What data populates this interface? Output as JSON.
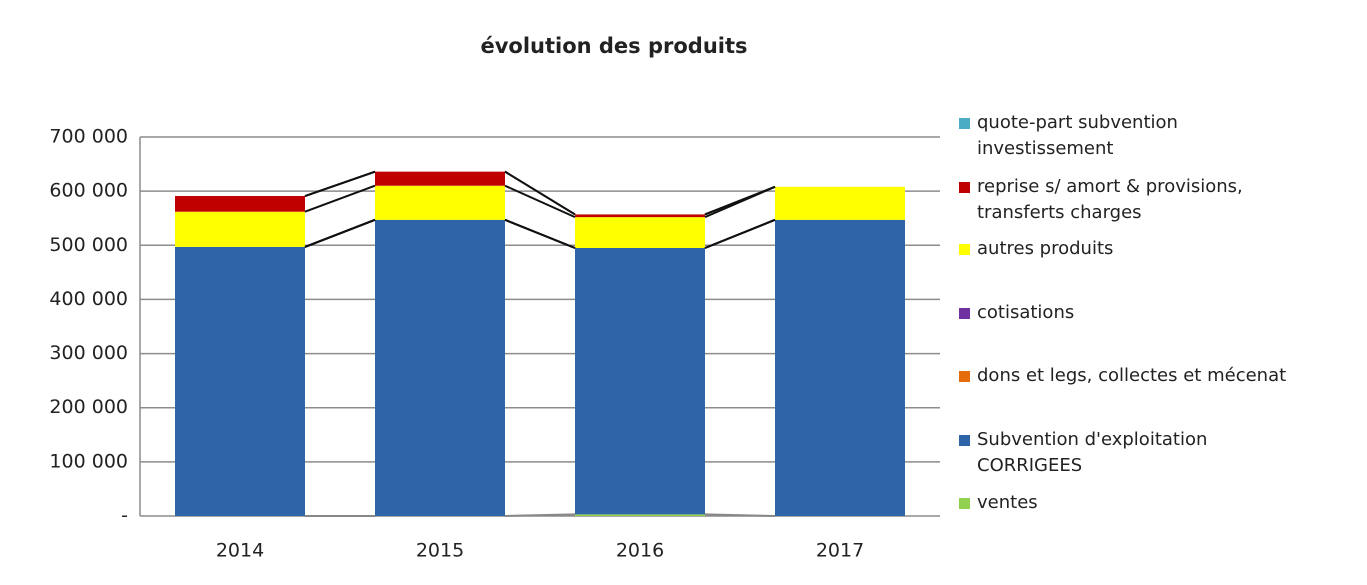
{
  "chart_data": {
    "type": "stacked_bar",
    "title": "évolution des produits",
    "categories": [
      "2014",
      "2015",
      "2016",
      "2017"
    ],
    "series": [
      {
        "name": "ventes",
        "color": "#92d050",
        "values": [
          0,
          0,
          3000,
          0
        ]
      },
      {
        "name": "Subvention d'exploitation CORRIGEES",
        "color": "#2e64a8",
        "values": [
          497000,
          547000,
          492000,
          547000
        ]
      },
      {
        "name": "dons et legs, collectes et mécenat",
        "color": "#e46c0a",
        "values": [
          0,
          0,
          0,
          0
        ]
      },
      {
        "name": "cotisations",
        "color": "#7030a0",
        "values": [
          0,
          0,
          0,
          0
        ]
      },
      {
        "name": "autres produits",
        "color": "#ffff00",
        "values": [
          65000,
          63000,
          57000,
          61000
        ]
      },
      {
        "name": "reprise s/ amort & provisions, transferts charges",
        "color": "#c00000",
        "values": [
          29000,
          26000,
          5000,
          0
        ]
      },
      {
        "name": "quote-part subvention investissement",
        "color": "#4bacc6",
        "values": [
          0,
          0,
          0,
          0
        ]
      }
    ],
    "ylim": [
      0,
      700000
    ],
    "yticks": [
      {
        "value": 0,
        "label": "-"
      },
      {
        "value": 100000,
        "label": "100 000"
      },
      {
        "value": 200000,
        "label": "200 000"
      },
      {
        "value": 300000,
        "label": "300 000"
      },
      {
        "value": 400000,
        "label": "400 000"
      },
      {
        "value": 500000,
        "label": "500 000"
      },
      {
        "value": 600000,
        "label": "600 000"
      },
      {
        "value": 700000,
        "label": "700 000"
      }
    ],
    "grid": true,
    "legend": "right"
  }
}
